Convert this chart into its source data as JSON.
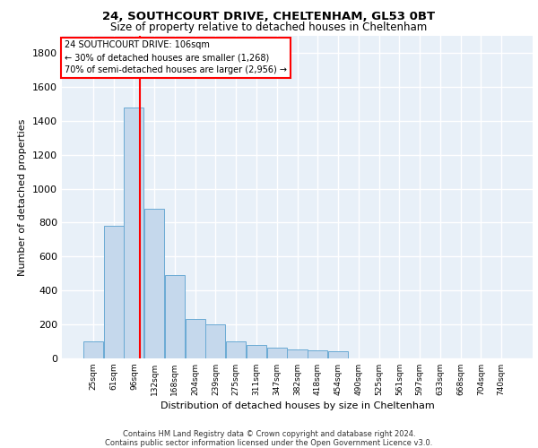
{
  "title1": "24, SOUTHCOURT DRIVE, CHELTENHAM, GL53 0BT",
  "title2": "Size of property relative to detached houses in Cheltenham",
  "xlabel": "Distribution of detached houses by size in Cheltenham",
  "ylabel": "Number of detached properties",
  "bin_labels": [
    "25sqm",
    "61sqm",
    "96sqm",
    "132sqm",
    "168sqm",
    "204sqm",
    "239sqm",
    "275sqm",
    "311sqm",
    "347sqm",
    "382sqm",
    "418sqm",
    "454sqm",
    "490sqm",
    "525sqm",
    "561sqm",
    "597sqm",
    "633sqm",
    "668sqm",
    "704sqm",
    "740sqm"
  ],
  "bar_values": [
    100,
    780,
    1480,
    880,
    490,
    230,
    200,
    100,
    80,
    65,
    55,
    50,
    40,
    0,
    0,
    0,
    0,
    0,
    0,
    0,
    0
  ],
  "bar_color": "#c5d8ec",
  "bar_edge_color": "#6aaad4",
  "background_color": "#e8f0f8",
  "grid_color": "#ffffff",
  "ylim": [
    0,
    1900
  ],
  "yticks": [
    0,
    200,
    400,
    600,
    800,
    1000,
    1200,
    1400,
    1600,
    1800
  ],
  "annotation_line1": "24 SOUTHCOURT DRIVE: 106sqm",
  "annotation_line2": "← 30% of detached houses are smaller (1,268)",
  "annotation_line3": "70% of semi-detached houses are larger (2,956) →",
  "footer": "Contains HM Land Registry data © Crown copyright and database right 2024.\nContains public sector information licensed under the Open Government Licence v3.0.",
  "red_line_x": 2.278
}
